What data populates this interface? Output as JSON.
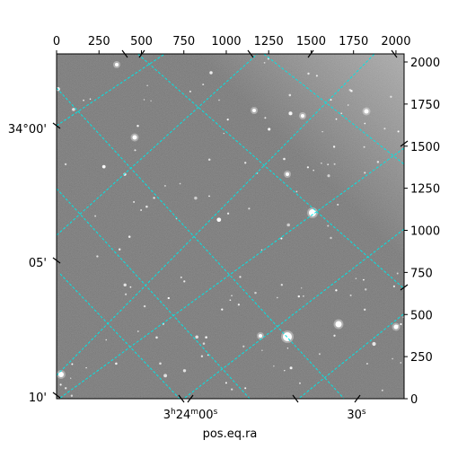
{
  "chart_data": {
    "type": "image",
    "xlabel": "pos.eq.ra",
    "pixel_x_ticks": [
      "0",
      "250",
      "500",
      "750",
      "1000",
      "1250",
      "1500",
      "1750",
      "2000"
    ],
    "pixel_y_ticks": [
      "0",
      "250",
      "500",
      "750",
      "1000",
      "1250",
      "1500",
      "1750",
      "2000"
    ],
    "pixel_xlim": [
      0,
      2048
    ],
    "pixel_ylim": [
      0,
      2048
    ],
    "dec_ticks": [
      "34°00'",
      "05'",
      "10'"
    ],
    "ra_ticks": [
      "3h24m00s",
      "30s"
    ],
    "grid": true,
    "grid_color": "#00e5e5",
    "image_colormap": "gray"
  }
}
